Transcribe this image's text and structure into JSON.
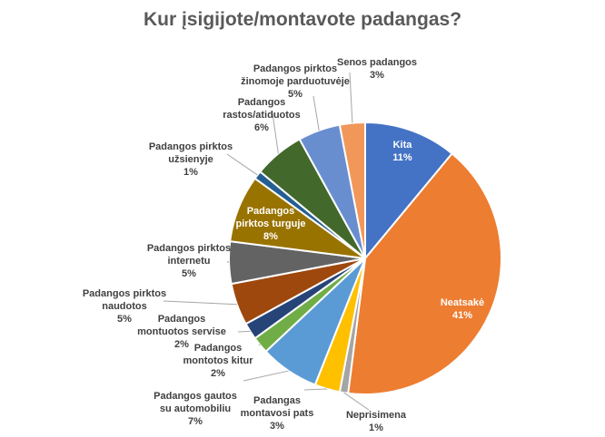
{
  "chart_data": {
    "type": "pie",
    "title": "Kur įsigijote/montavote  padangas?",
    "slices": [
      {
        "label": [
          "Kita"
        ],
        "value": 11,
        "pct": "11%",
        "color": "#4472C4"
      },
      {
        "label": [
          "Neatsakė"
        ],
        "value": 41,
        "pct": "41%",
        "color": "#ED7D31"
      },
      {
        "label": [
          "Neprisimena"
        ],
        "value": 1,
        "pct": "1%",
        "color": "#A5A5A5"
      },
      {
        "label": [
          "Padangas",
          "montavosi pats"
        ],
        "value": 3,
        "pct": "3%",
        "color": "#FFC000"
      },
      {
        "label": [
          "Padangos gautos",
          "su automobiliu"
        ],
        "value": 7,
        "pct": "7%",
        "color": "#5B9BD5"
      },
      {
        "label": [
          "Padangos",
          "montotos kitur"
        ],
        "value": 2,
        "pct": "2%",
        "color": "#70AD47"
      },
      {
        "label": [
          "Padangos",
          "montuotos servise"
        ],
        "value": 2,
        "pct": "2%",
        "color": "#264478"
      },
      {
        "label": [
          "Padangos pirktos",
          "naudotos"
        ],
        "value": 5,
        "pct": "5%",
        "color": "#9E480E"
      },
      {
        "label": [
          "Padangos pirktos",
          "internetu"
        ],
        "value": 5,
        "pct": "5%",
        "color": "#636363"
      },
      {
        "label": [
          "Padangos",
          "pirktos turguje"
        ],
        "value": 8,
        "pct": "8%",
        "color": "#997300"
      },
      {
        "label": [
          "Padangos pirktos",
          "užsienyje"
        ],
        "value": 1,
        "pct": "1%",
        "color": "#255E91"
      },
      {
        "label": [
          "Padangos",
          "rastos/atiduotos"
        ],
        "value": 6,
        "pct": "6%",
        "color": "#43682B"
      },
      {
        "label": [
          "Padangos pirktos",
          "žinomoje parduotuvėje"
        ],
        "value": 5,
        "pct": "5%",
        "color": "#698ED0"
      },
      {
        "label": [
          "Senos padangos"
        ],
        "value": 3,
        "pct": "3%",
        "color": "#F1975A"
      }
    ]
  }
}
